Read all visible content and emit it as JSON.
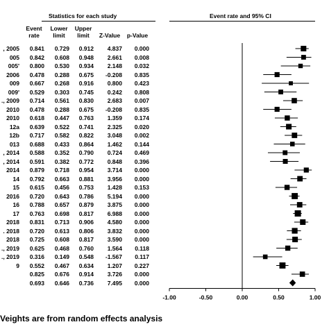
{
  "header": {
    "stats_title": "Statistics for each study",
    "ci_title": "Event rate and 95% CI"
  },
  "columns": {
    "event_rate": [
      "Event",
      "rate"
    ],
    "lower_limit": [
      "Lower",
      "limit"
    ],
    "upper_limit": [
      "Upper",
      "limit"
    ],
    "z_value": "Z-Value",
    "p_value": "p-Value"
  },
  "footer": {
    "note": "Veights are from random effects analysis"
  },
  "chart_data": {
    "type": "forest",
    "xlim": [
      -1.0,
      1.0
    ],
    "x_ticks": [
      "-1.00",
      "-0.50",
      "0.00",
      "0.50",
      "1.00"
    ],
    "x_tick_values": [
      -1.0,
      -0.5,
      0.0,
      0.5,
      1.0
    ],
    "rows": [
      {
        "study": ", 2005",
        "event_rate": "0.841",
        "lower": "0.729",
        "upper": "0.912",
        "z": "4.837",
        "p": "0.000",
        "est": 0.841,
        "lo": 0.729,
        "hi": 0.912,
        "weight": 1.0
      },
      {
        "study": "005",
        "event_rate": "0.842",
        "lower": "0.608",
        "upper": "0.948",
        "z": "2.661",
        "p": "0.008",
        "est": 0.842,
        "lo": 0.608,
        "hi": 0.948,
        "weight": 0.7
      },
      {
        "study": "005'",
        "event_rate": "0.800",
        "lower": "0.530",
        "upper": "0.934",
        "z": "2.148",
        "p": "0.032",
        "est": 0.8,
        "lo": 0.53,
        "hi": 0.934,
        "weight": 0.6
      },
      {
        "study": "2006",
        "event_rate": "0.478",
        "lower": "0.288",
        "upper": "0.675",
        "z": "-0.208",
        "p": "0.835",
        "est": 0.478,
        "lo": 0.288,
        "hi": 0.675,
        "weight": 0.8
      },
      {
        "study": "009",
        "event_rate": "0.667",
        "lower": "0.268",
        "upper": "0.916",
        "z": "0.800",
        "p": "0.423",
        "est": 0.667,
        "lo": 0.268,
        "hi": 0.916,
        "weight": 0.45
      },
      {
        "study": "009'",
        "event_rate": "0.529",
        "lower": "0.303",
        "upper": "0.745",
        "z": "0.242",
        "p": "0.808",
        "est": 0.529,
        "lo": 0.303,
        "hi": 0.745,
        "weight": 0.7
      },
      {
        "study": "., 2009",
        "event_rate": "0.714",
        "lower": "0.561",
        "upper": "0.830",
        "z": "2.683",
        "p": "0.007",
        "est": 0.714,
        "lo": 0.561,
        "hi": 0.83,
        "weight": 0.9
      },
      {
        "study": "2010",
        "event_rate": "0.478",
        "lower": "0.288",
        "upper": "0.675",
        "z": "-0.208",
        "p": "0.835",
        "est": 0.478,
        "lo": 0.288,
        "hi": 0.675,
        "weight": 0.8
      },
      {
        "study": "2010",
        "event_rate": "0.618",
        "lower": "0.447",
        "upper": "0.763",
        "z": "1.359",
        "p": "0.174",
        "est": 0.618,
        "lo": 0.447,
        "hi": 0.763,
        "weight": 0.85
      },
      {
        "study": "12a",
        "event_rate": "0.639",
        "lower": "0.522",
        "upper": "0.741",
        "z": "2.325",
        "p": "0.020",
        "est": 0.639,
        "lo": 0.522,
        "hi": 0.741,
        "weight": 1.0
      },
      {
        "study": "12b",
        "event_rate": "0.717",
        "lower": "0.582",
        "upper": "0.822",
        "z": "3.048",
        "p": "0.002",
        "est": 0.717,
        "lo": 0.582,
        "hi": 0.822,
        "weight": 0.95
      },
      {
        "study": "013",
        "event_rate": "0.688",
        "lower": "0.433",
        "upper": "0.864",
        "z": "1.462",
        "p": "0.144",
        "est": 0.688,
        "lo": 0.433,
        "hi": 0.864,
        "weight": 0.65
      },
      {
        "study": ", 2014",
        "event_rate": "0.588",
        "lower": "0.352",
        "upper": "0.790",
        "z": "0.724",
        "p": "0.469",
        "est": 0.588,
        "lo": 0.352,
        "hi": 0.79,
        "weight": 0.7
      },
      {
        "study": ", 2014",
        "event_rate": "0.591",
        "lower": "0.382",
        "upper": "0.772",
        "z": "0.848",
        "p": "0.396",
        "est": 0.591,
        "lo": 0.382,
        "hi": 0.772,
        "weight": 0.75
      },
      {
        "study": "2014",
        "event_rate": "0.879",
        "lower": "0.718",
        "upper": "0.954",
        "z": "3.714",
        "p": "0.000",
        "est": 0.879,
        "lo": 0.718,
        "hi": 0.954,
        "weight": 0.8
      },
      {
        "study": "14",
        "event_rate": "0.792",
        "lower": "0.663",
        "upper": "0.881",
        "z": "3.956",
        "p": "0.000",
        "est": 0.792,
        "lo": 0.663,
        "hi": 0.881,
        "weight": 0.95
      },
      {
        "study": "15",
        "event_rate": "0.615",
        "lower": "0.456",
        "upper": "0.753",
        "z": "1.428",
        "p": "0.153",
        "est": 0.615,
        "lo": 0.456,
        "hi": 0.753,
        "weight": 0.85
      },
      {
        "study": "2016",
        "event_rate": "0.720",
        "lower": "0.643",
        "upper": "0.786",
        "z": "5.194",
        "p": "0.000",
        "est": 0.72,
        "lo": 0.643,
        "hi": 0.786,
        "weight": 1.2
      },
      {
        "study": "16",
        "event_rate": "0.788",
        "lower": "0.657",
        "upper": "0.879",
        "z": "3.875",
        "p": "0.000",
        "est": 0.788,
        "lo": 0.657,
        "hi": 0.879,
        "weight": 0.95
      },
      {
        "study": "17",
        "event_rate": "0.763",
        "lower": "0.698",
        "upper": "0.817",
        "z": "6.988",
        "p": "0.000",
        "est": 0.763,
        "lo": 0.698,
        "hi": 0.817,
        "weight": 1.25
      },
      {
        "study": "2018",
        "event_rate": "0.831",
        "lower": "0.713",
        "upper": "0.906",
        "z": "4.580",
        "p": "0.000",
        "est": 0.831,
        "lo": 0.713,
        "hi": 0.906,
        "weight": 1.0
      },
      {
        "study": ". 2018",
        "event_rate": "0.720",
        "lower": "0.613",
        "upper": "0.806",
        "z": "3.832",
        "p": "0.000",
        "est": 0.72,
        "lo": 0.613,
        "hi": 0.806,
        "weight": 1.05
      },
      {
        "study": "2018",
        "event_rate": "0.725",
        "lower": "0.608",
        "upper": "0.817",
        "z": "3.590",
        "p": "0.000",
        "est": 0.725,
        "lo": 0.608,
        "hi": 0.817,
        "weight": 1.0
      },
      {
        "study": "., 2019",
        "event_rate": "0.625",
        "lower": "0.468",
        "upper": "0.760",
        "z": "1.564",
        "p": "0.118",
        "est": 0.625,
        "lo": 0.468,
        "hi": 0.76,
        "weight": 0.85
      },
      {
        "study": "., 2019",
        "event_rate": "0.316",
        "lower": "0.149",
        "upper": "0.548",
        "z": "-1.567",
        "p": "0.117",
        "est": 0.316,
        "lo": 0.149,
        "hi": 0.548,
        "weight": 0.65
      },
      {
        "study": "9",
        "event_rate": "0.552",
        "lower": "0.467",
        "upper": "0.634",
        "z": "1.207",
        "p": "0.227",
        "est": 0.552,
        "lo": 0.467,
        "hi": 0.634,
        "weight": 1.2
      },
      {
        "study": "",
        "event_rate": "0.825",
        "lower": "0.676",
        "upper": "0.914",
        "z": "3.726",
        "p": "0.000",
        "est": 0.825,
        "lo": 0.676,
        "hi": 0.914,
        "weight": 0.9
      }
    ],
    "summary": {
      "event_rate": "0.693",
      "lower": "0.646",
      "upper": "0.736",
      "z": "7.495",
      "p": "0.000",
      "est": 0.693,
      "lo": 0.646,
      "hi": 0.736
    }
  }
}
